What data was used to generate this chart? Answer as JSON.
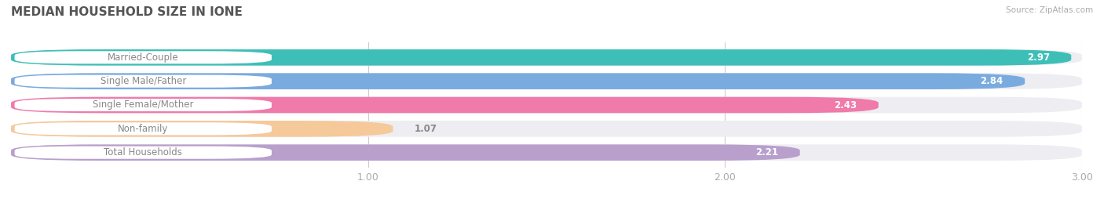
{
  "title": "MEDIAN HOUSEHOLD SIZE IN IONE",
  "source": "Source: ZipAtlas.com",
  "categories": [
    "Married-Couple",
    "Single Male/Father",
    "Single Female/Mother",
    "Non-family",
    "Total Households"
  ],
  "values": [
    2.97,
    2.84,
    2.43,
    1.07,
    2.21
  ],
  "bar_colors": [
    "#3dbfb8",
    "#7aabdf",
    "#f07aaa",
    "#f5c99a",
    "#b89fcc"
  ],
  "label_text_color": "#888888",
  "value_text_color_inside": "#ffffff",
  "value_text_color_outside": "#888888",
  "bg_pill_color": "#ededf2",
  "xlim": [
    0,
    3.0
  ],
  "xticks": [
    1.0,
    2.0,
    3.0
  ],
  "label_fontsize": 8.5,
  "value_fontsize": 8.5,
  "title_fontsize": 11,
  "background_color": "#ffffff"
}
